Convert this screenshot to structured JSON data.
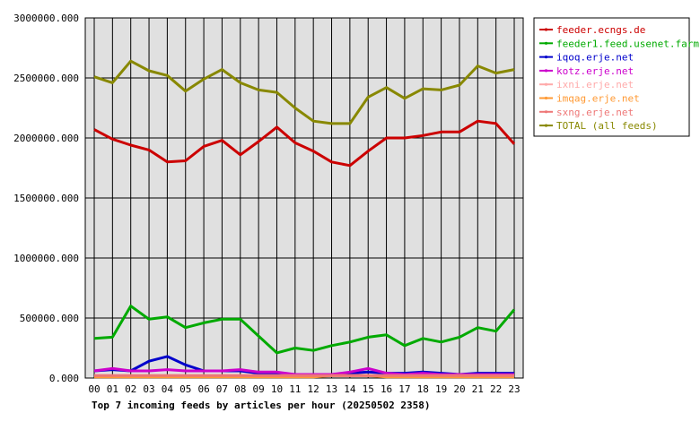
{
  "chart_data": {
    "type": "line",
    "title": "Top 7 incoming feeds by articles per hour (20250502 2358)",
    "xlabel": "",
    "ylabel": "",
    "ylim": [
      0,
      3000000
    ],
    "y_ticks": [
      "0.000",
      "500000.000",
      "1000000.000",
      "1500000.000",
      "2000000.000",
      "2500000.000",
      "3000000.000"
    ],
    "y_tick_values": [
      0,
      500000,
      1000000,
      1500000,
      2000000,
      2500000,
      3000000
    ],
    "categories": [
      "00",
      "01",
      "02",
      "03",
      "04",
      "05",
      "06",
      "07",
      "08",
      "09",
      "10",
      "11",
      "12",
      "13",
      "14",
      "15",
      "16",
      "17",
      "18",
      "19",
      "20",
      "21",
      "22",
      "23"
    ],
    "grid": true,
    "legend_position": "right",
    "plot_background": "#e0e0e0",
    "series": [
      {
        "name": "feeder.ecngs.de",
        "color": "#cc0000",
        "values": [
          2070000,
          1990000,
          1940000,
          1900000,
          1800000,
          1810000,
          1930000,
          1980000,
          1860000,
          1970000,
          2090000,
          1960000,
          1890000,
          1800000,
          1770000,
          1890000,
          2000000,
          2000000,
          2020000,
          2050000,
          2050000,
          2140000,
          2120000,
          1950000
        ]
      },
      {
        "name": "feeder1.feed.usenet.farm",
        "color": "#00aa00",
        "values": [
          330000,
          340000,
          600000,
          490000,
          510000,
          420000,
          460000,
          490000,
          490000,
          350000,
          210000,
          250000,
          230000,
          270000,
          300000,
          340000,
          360000,
          270000,
          330000,
          300000,
          340000,
          420000,
          390000,
          570000
        ]
      },
      {
        "name": "iqoq.erje.net",
        "color": "#0000cc",
        "values": [
          60000,
          70000,
          60000,
          140000,
          180000,
          110000,
          60000,
          60000,
          60000,
          40000,
          40000,
          30000,
          30000,
          30000,
          40000,
          50000,
          40000,
          40000,
          50000,
          40000,
          30000,
          40000,
          40000,
          40000
        ]
      },
      {
        "name": "kotz.erje.net",
        "color": "#cc00cc",
        "values": [
          60000,
          80000,
          60000,
          60000,
          70000,
          60000,
          60000,
          60000,
          70000,
          50000,
          50000,
          30000,
          30000,
          30000,
          50000,
          80000,
          40000,
          30000,
          40000,
          30000,
          30000,
          30000,
          30000,
          30000
        ]
      },
      {
        "name": "ixni.erje.net",
        "color": "#ffaaaa",
        "values": [
          20000,
          20000,
          20000,
          20000,
          20000,
          20000,
          20000,
          20000,
          20000,
          20000,
          20000,
          20000,
          20000,
          20000,
          20000,
          20000,
          20000,
          20000,
          20000,
          20000,
          20000,
          20000,
          20000,
          20000
        ]
      },
      {
        "name": "imqag.erje.net",
        "color": "#ff9933",
        "values": [
          10000,
          10000,
          10000,
          10000,
          10000,
          10000,
          10000,
          10000,
          10000,
          10000,
          10000,
          10000,
          10000,
          20000,
          20000,
          20000,
          10000,
          10000,
          10000,
          10000,
          10000,
          10000,
          10000,
          10000
        ]
      },
      {
        "name": "sxng.erje.net",
        "color": "#ee7777",
        "values": [
          20000,
          20000,
          20000,
          20000,
          20000,
          20000,
          20000,
          20000,
          20000,
          20000,
          20000,
          20000,
          20000,
          20000,
          20000,
          20000,
          20000,
          20000,
          20000,
          20000,
          20000,
          20000,
          20000,
          20000
        ]
      },
      {
        "name": "TOTAL (all feeds)",
        "color": "#888800",
        "values": [
          2510000,
          2460000,
          2640000,
          2560000,
          2520000,
          2390000,
          2490000,
          2570000,
          2460000,
          2400000,
          2380000,
          2250000,
          2140000,
          2120000,
          2120000,
          2340000,
          2420000,
          2330000,
          2410000,
          2400000,
          2440000,
          2600000,
          2540000,
          2570000
        ]
      }
    ]
  }
}
